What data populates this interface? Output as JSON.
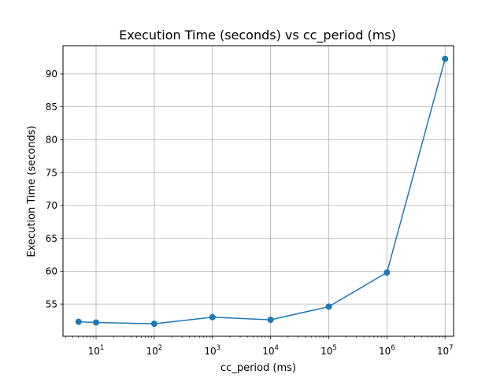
{
  "chart_data": {
    "type": "line",
    "title": "Execution Time (seconds) vs cc_period (ms)",
    "xlabel": "cc_period (ms)",
    "ylabel": "Execution Time (seconds)",
    "xscale": "log",
    "grid": true,
    "xlim": [
      2.7,
      14000000
    ],
    "ylim": [
      50.1,
      94.3
    ],
    "x_ticks": [
      {
        "base": "10",
        "exp": "1",
        "value": 10
      },
      {
        "base": "10",
        "exp": "2",
        "value": 100
      },
      {
        "base": "10",
        "exp": "3",
        "value": 1000
      },
      {
        "base": "10",
        "exp": "4",
        "value": 10000
      },
      {
        "base": "10",
        "exp": "5",
        "value": 100000
      },
      {
        "base": "10",
        "exp": "6",
        "value": 1000000
      },
      {
        "base": "10",
        "exp": "7",
        "value": 10000000
      }
    ],
    "y_ticks": [
      "55",
      "60",
      "65",
      "70",
      "75",
      "80",
      "85",
      "90"
    ],
    "x": [
      5,
      10,
      100,
      1000,
      10000,
      100000,
      1000000,
      10000000
    ],
    "values": [
      52.3,
      52.2,
      52.0,
      53.0,
      52.6,
      54.6,
      59.8,
      92.3
    ],
    "color": "#1f77b4"
  }
}
